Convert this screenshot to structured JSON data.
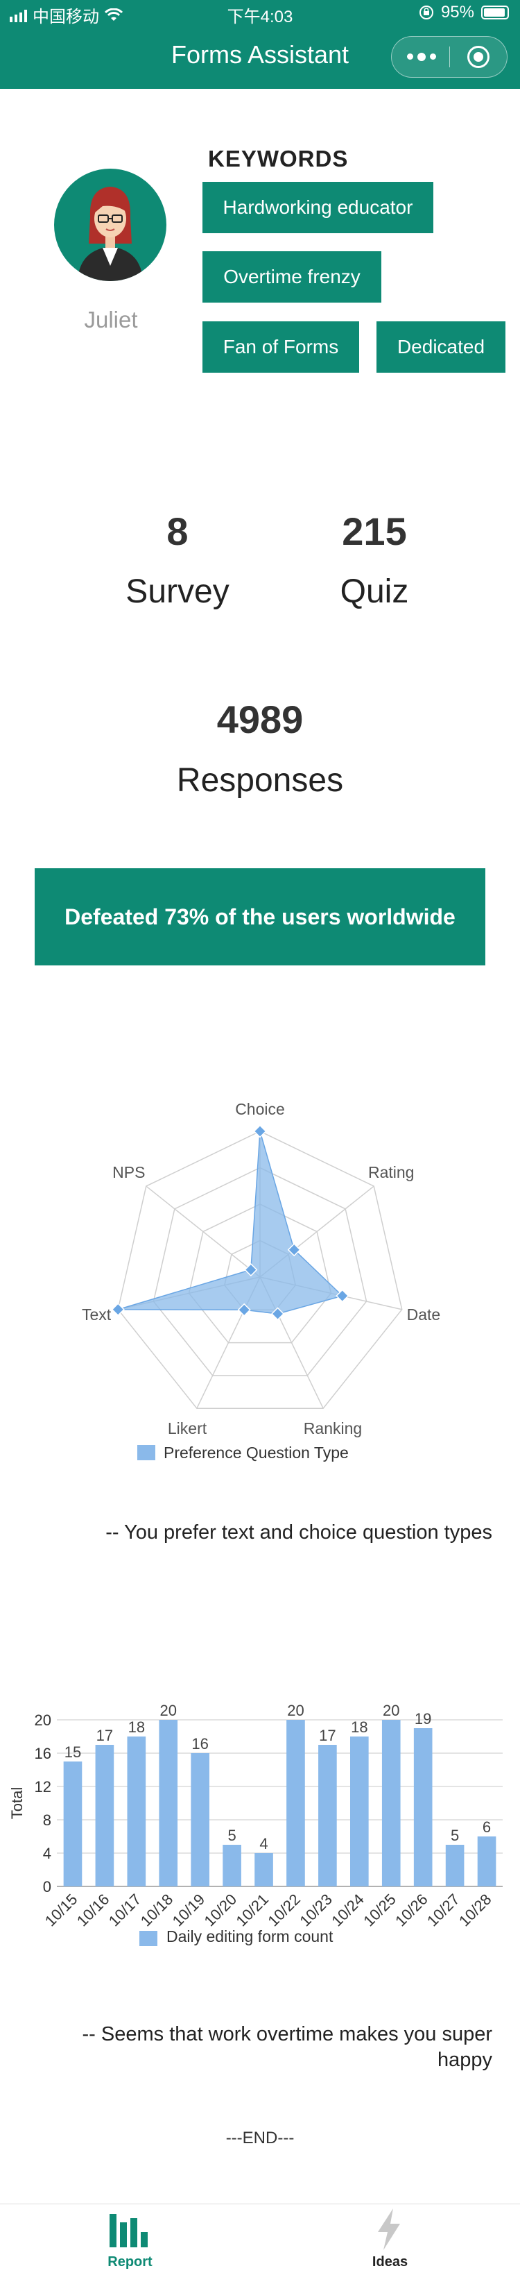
{
  "status_bar": {
    "carrier": "中国移动",
    "time": "下午4:03",
    "battery": "95%"
  },
  "nav": {
    "title": "Forms Assistant"
  },
  "profile": {
    "name": "Juliet"
  },
  "keywords": {
    "title": "KEYWORDS",
    "tags": [
      "Hardworking educator",
      "Overtime frenzy",
      "Fan of Forms",
      "Dedicated"
    ]
  },
  "stats": {
    "survey": {
      "value": "8",
      "label": "Survey"
    },
    "quiz": {
      "value": "215",
      "label": "Quiz"
    },
    "responses": {
      "value": "4989",
      "label": "Responses"
    }
  },
  "banner": {
    "text": "Defeated 73% of the users worldwide"
  },
  "colors": {
    "brand": "#0e8a74",
    "chart_fill": "#8ab9ea",
    "chart_marker": "#6aa6e4"
  },
  "chart_data": [
    {
      "type": "radar",
      "axes": [
        "Choice",
        "Rating",
        "Date",
        "Ranking",
        "Likert",
        "Text",
        "NPS"
      ],
      "series": [
        {
          "name": "Preference Question Type",
          "values": [
            1.0,
            0.3,
            0.58,
            0.28,
            0.25,
            1.0,
            0.08
          ]
        }
      ],
      "max": 1.0,
      "legend": "bottom"
    },
    {
      "type": "bar",
      "categories": [
        "10/15",
        "10/16",
        "10/17",
        "10/18",
        "10/19",
        "10/20",
        "10/21",
        "10/22",
        "10/23",
        "10/24",
        "10/25",
        "10/26",
        "10/27",
        "10/28"
      ],
      "series": [
        {
          "name": "Daily editing form count",
          "values": [
            15,
            17,
            18,
            20,
            16,
            5,
            4,
            20,
            17,
            18,
            20,
            19,
            5,
            6
          ]
        }
      ],
      "ylabel": "Total",
      "ylim": [
        0,
        20
      ],
      "yticks": [
        0,
        4,
        8,
        12,
        16,
        20
      ],
      "grid": true,
      "legend": "bottom"
    }
  ],
  "captions": {
    "radar": "-- You prefer text and choice question types",
    "bar_line1": "-- Seems that work overtime makes you super",
    "bar_line2": "happy"
  },
  "end_text": "---END---",
  "tabs": [
    {
      "label": "Report",
      "icon": "bar-chart-icon",
      "active": true
    },
    {
      "label": "Ideas",
      "icon": "lightning-icon",
      "active": false
    }
  ]
}
